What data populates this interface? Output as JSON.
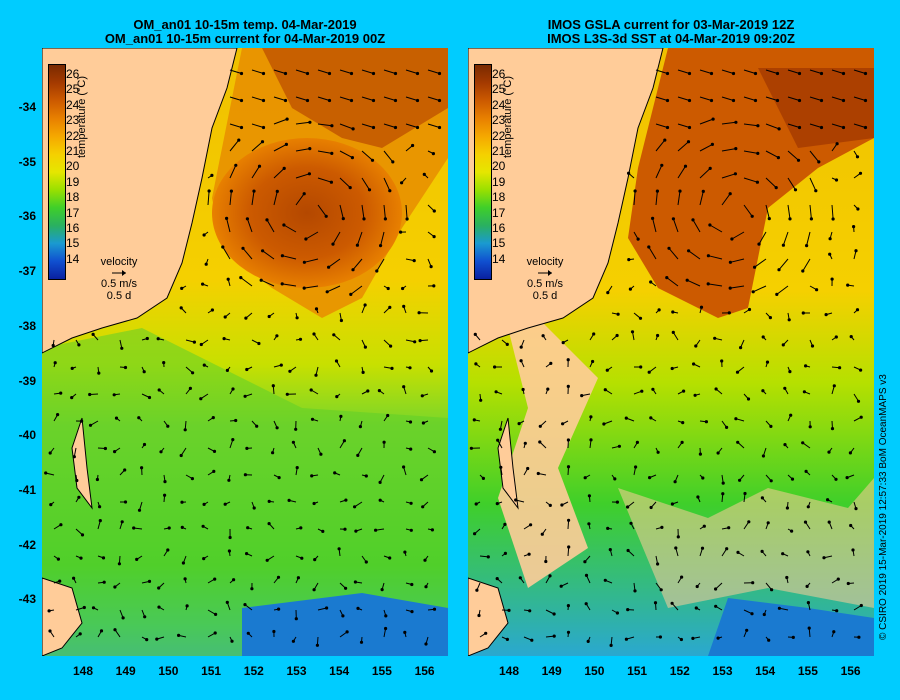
{
  "panels": [
    {
      "title_line1": "OM_an01 10-15m temp. 04-Mar-2019",
      "title_line2": "OM_an01 10-15m current for 04-Mar-2019 00Z"
    },
    {
      "title_line1": "IMOS GSLA current for 03-Mar-2019 12Z",
      "title_line2": "IMOS L3S-3d SST at 04-Mar-2019 09:20Z"
    }
  ],
  "axes": {
    "lat_labels": [
      "-34",
      "-35",
      "-36",
      "-37",
      "-38",
      "-39",
      "-40",
      "-41",
      "-42",
      "-43"
    ],
    "lon_labels": [
      "148",
      "149",
      "150",
      "151",
      "152",
      "153",
      "154",
      "155",
      "156"
    ]
  },
  "colorbar": {
    "ticks": [
      "26",
      "25",
      "24",
      "23",
      "22",
      "21",
      "20",
      "19",
      "18",
      "17",
      "16",
      "15",
      "14"
    ],
    "title": "temperature (°C)",
    "colors": [
      "#7a2a00",
      "#a43a00",
      "#cc5a00",
      "#e88000",
      "#f5a800",
      "#f5d000",
      "#e6e600",
      "#9ae000",
      "#3fcf2a",
      "#2ab060",
      "#1a9ad0",
      "#1050d0",
      "#0a20a0"
    ]
  },
  "legend": {
    "title": "velocity",
    "speed": "0.5 m/s",
    "duration": "0.5 d"
  },
  "credit": "© CSIRO 2019   15-Mar-2019 12:57:33 BoM OceanMAPS v3",
  "colors": {
    "background": "#00ccff",
    "land": "#ffcc99",
    "sea_warm": "#cc5a00",
    "sea_mid": "#e8d000",
    "sea_cool": "#3fcf2a",
    "sea_cold": "#1a7ad0"
  }
}
